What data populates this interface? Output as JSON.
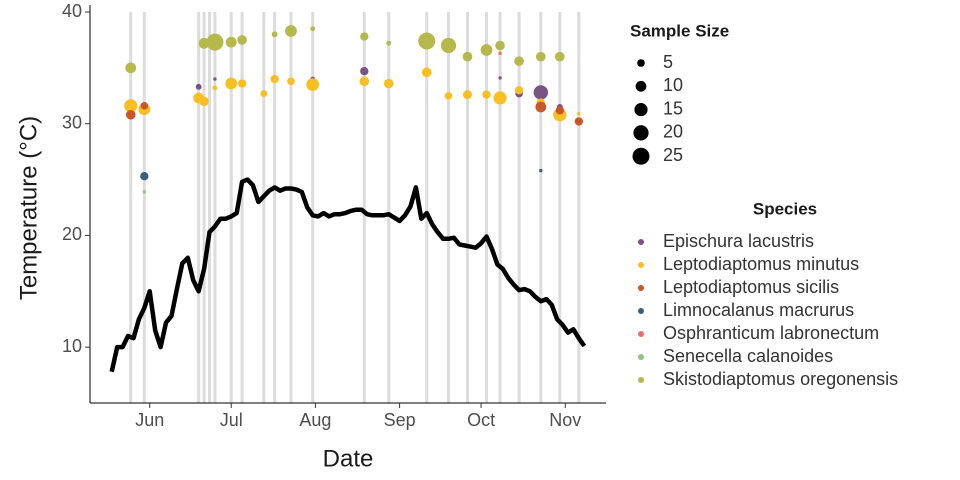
{
  "chart_data": {
    "type": "scatter",
    "xlabel": "Date",
    "ylabel": "Temperature (°C)",
    "xlim": [
      130,
      320
    ],
    "xticks": [
      {
        "value": 152,
        "label": "Jun"
      },
      {
        "value": 182,
        "label": "Jul"
      },
      {
        "value": 213,
        "label": "Aug"
      },
      {
        "value": 244,
        "label": "Sep"
      },
      {
        "value": 274,
        "label": "Oct"
      },
      {
        "value": 305,
        "label": "Nov"
      }
    ],
    "ylim": [
      5,
      40
    ],
    "yticks": [
      10,
      20,
      30,
      40
    ],
    "sampling_dates": [
      145,
      150,
      170,
      172,
      174,
      176,
      182,
      186,
      194,
      198,
      204,
      212,
      231,
      240,
      254,
      262,
      269,
      276,
      281,
      288,
      296,
      303,
      310
    ],
    "sampling_color": "#dcdcdc",
    "temperature": {
      "color": "#000000",
      "x": [
        138,
        140,
        142,
        144,
        146,
        148,
        150,
        152,
        154,
        156,
        158,
        160,
        162,
        164,
        166,
        168,
        170,
        172,
        174,
        176,
        178,
        180,
        182,
        184,
        186,
        188,
        190,
        192,
        194,
        196,
        198,
        200,
        202,
        204,
        206,
        208,
        210,
        212,
        214,
        216,
        218,
        220,
        222,
        224,
        226,
        228,
        230,
        232,
        234,
        236,
        238,
        240,
        242,
        244,
        246,
        248,
        250,
        252,
        254,
        256,
        258,
        260,
        262,
        264,
        266,
        268,
        270,
        272,
        274,
        276,
        278,
        280,
        282,
        284,
        286,
        288,
        290,
        292,
        294,
        296,
        298,
        300,
        302,
        304,
        306,
        308,
        310,
        312
      ],
      "values": [
        7.8,
        10,
        10,
        11,
        10.8,
        12.5,
        13.5,
        15,
        11.5,
        10,
        12.2,
        12.8,
        15.2,
        17.5,
        18,
        16,
        15,
        17,
        20.3,
        20.8,
        21.5,
        21.5,
        21.7,
        22,
        24.8,
        25,
        24.5,
        23,
        23.5,
        24,
        24.3,
        24,
        24.2,
        24.2,
        24.1,
        23.9,
        22.5,
        21.8,
        21.7,
        22,
        21.7,
        21.9,
        21.9,
        22,
        22.2,
        22.3,
        22.3,
        21.9,
        21.8,
        21.8,
        21.8,
        21.9,
        21.6,
        21.3,
        21.8,
        22.6,
        24.3,
        21.5,
        22,
        21,
        20.3,
        19.7,
        19.7,
        19.8,
        19.2,
        19.1,
        19,
        18.9,
        19.3,
        19.9,
        18.8,
        17.4,
        17,
        16.2,
        15.6,
        15.1,
        15.2,
        15,
        14.5,
        14.1,
        14.3,
        13.8,
        12.5,
        12,
        11.3,
        11.6,
        10.8,
        10.1
      ]
    },
    "size_legend": {
      "title": "Sample Size",
      "sizes": [
        5,
        10,
        15,
        20,
        25
      ]
    },
    "legend": {
      "title": "Species"
    },
    "series": [
      {
        "name": "Epischura lacustris",
        "color": "#7b5284",
        "x": [
          170,
          176,
          212,
          231,
          281,
          288,
          296,
          303
        ],
        "values": [
          33.3,
          34,
          34,
          34.7,
          34.1,
          32.7,
          32.8,
          31.5
        ],
        "sizes": [
          3,
          1,
          2,
          6,
          1,
          5,
          18,
          3
        ]
      },
      {
        "name": "Leptodiaptomus minutus",
        "color": "#f9bf22",
        "x": [
          145,
          150,
          170,
          172,
          176,
          182,
          186,
          194,
          198,
          204,
          212,
          231,
          240,
          254,
          262,
          269,
          276,
          281,
          288,
          296,
          303,
          310
        ],
        "values": [
          31.6,
          31.3,
          32.3,
          32,
          33.2,
          33.6,
          33.6,
          32.7,
          34,
          33.8,
          33.5,
          33.8,
          33.6,
          34.6,
          32.5,
          32.6,
          32.6,
          32.3,
          33,
          31.9,
          30.8,
          30.9
        ],
        "sizes": [
          15,
          12,
          10,
          8,
          2,
          12,
          6,
          4,
          6,
          5,
          14,
          8,
          8,
          8,
          5,
          7,
          6,
          15,
          6,
          6,
          15,
          1
        ]
      },
      {
        "name": "Leptodiaptomus sicilis",
        "color": "#c8562a",
        "x": [
          145,
          150,
          296,
          303,
          310
        ],
        "values": [
          30.8,
          31.6,
          31.5,
          31.2,
          30.2
        ],
        "sizes": [
          8,
          5,
          10,
          6,
          6
        ]
      },
      {
        "name": "Limnocalanus macrurus",
        "color": "#3b5f80",
        "x": [
          150,
          296
        ],
        "values": [
          25.3,
          25.8
        ],
        "sizes": [
          6,
          1
        ]
      },
      {
        "name": "Osphranticum labronectum",
        "color": "#e8706a",
        "x": [
          281
        ],
        "values": [
          36.3
        ],
        "sizes": [
          1
        ]
      },
      {
        "name": "Senecella calanoides",
        "color": "#8fc485",
        "x": [
          150
        ],
        "values": [
          23.9
        ],
        "sizes": [
          1
        ]
      },
      {
        "name": "Skistodiaptomus oregonensis",
        "color": "#b5b84a",
        "x": [
          145,
          172,
          176,
          182,
          186,
          198,
          204,
          212,
          231,
          240,
          254,
          262,
          269,
          276,
          281,
          288,
          296,
          303
        ],
        "values": [
          35,
          37.2,
          37.3,
          37.3,
          37.5,
          38,
          38.3,
          38.5,
          37.8,
          37.2,
          37.4,
          37,
          36,
          36.6,
          37,
          35.6,
          36,
          36
        ],
        "sizes": [
          10,
          10,
          25,
          10,
          8,
          3,
          12,
          2,
          6,
          2,
          25,
          20,
          8,
          12,
          8,
          8,
          8,
          8
        ]
      }
    ]
  }
}
